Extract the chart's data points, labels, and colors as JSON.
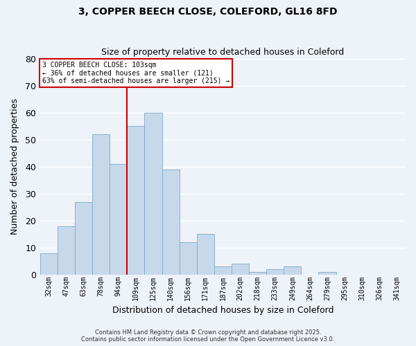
{
  "title": "3, COPPER BEECH CLOSE, COLEFORD, GL16 8FD",
  "subtitle": "Size of property relative to detached houses in Coleford",
  "xlabel": "Distribution of detached houses by size in Coleford",
  "ylabel": "Number of detached properties",
  "bin_labels": [
    "32sqm",
    "47sqm",
    "63sqm",
    "78sqm",
    "94sqm",
    "109sqm",
    "125sqm",
    "140sqm",
    "156sqm",
    "171sqm",
    "187sqm",
    "202sqm",
    "218sqm",
    "233sqm",
    "249sqm",
    "264sqm",
    "279sqm",
    "295sqm",
    "310sqm",
    "326sqm",
    "341sqm"
  ],
  "bar_values": [
    8,
    18,
    27,
    52,
    41,
    55,
    60,
    39,
    12,
    15,
    3,
    4,
    1,
    2,
    3,
    0,
    1,
    0,
    0,
    0,
    0
  ],
  "bar_color": "#c8d8eb",
  "bar_edge_color": "#7aaac8",
  "background_color": "#eef2f9",
  "grid_color": "#ffffff",
  "annotation_box_text_line1": "3 COPPER BEECH CLOSE: 103sqm",
  "annotation_box_text_line2": "← 36% of detached houses are smaller (121)",
  "annotation_box_text_line3": "63% of semi-detached houses are larger (215) →",
  "vline_x_index": 5,
  "vline_color": "#cc0000",
  "ylim": [
    0,
    80
  ],
  "yticks": [
    0,
    10,
    20,
    30,
    40,
    50,
    60,
    70,
    80
  ],
  "footer_line1": "Contains HM Land Registry data © Crown copyright and database right 2025.",
  "footer_line2": "Contains public sector information licensed under the Open Government Licence v3.0."
}
